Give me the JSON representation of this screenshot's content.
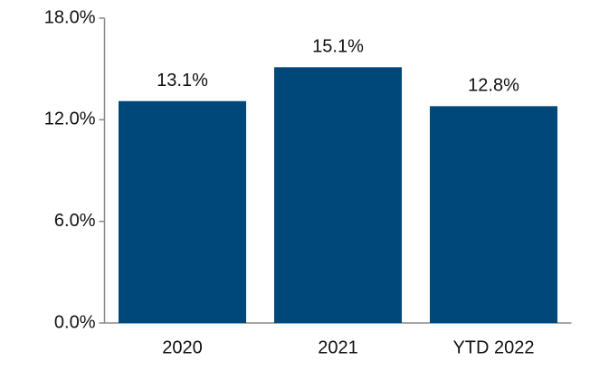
{
  "chart_data": {
    "type": "bar",
    "categories": [
      "2020",
      "2021",
      "YTD 2022"
    ],
    "values": [
      13.1,
      15.1,
      12.8
    ],
    "value_labels": [
      "13.1%",
      "15.1%",
      "12.8%"
    ],
    "color": "#00477a",
    "ylim": [
      0,
      18
    ],
    "yticks": [
      {
        "value": 0,
        "label": "0.0%"
      },
      {
        "value": 6,
        "label": "6.0%"
      },
      {
        "value": 12,
        "label": "12.0%"
      },
      {
        "value": 18,
        "label": "18.0%"
      }
    ],
    "grid": false
  }
}
